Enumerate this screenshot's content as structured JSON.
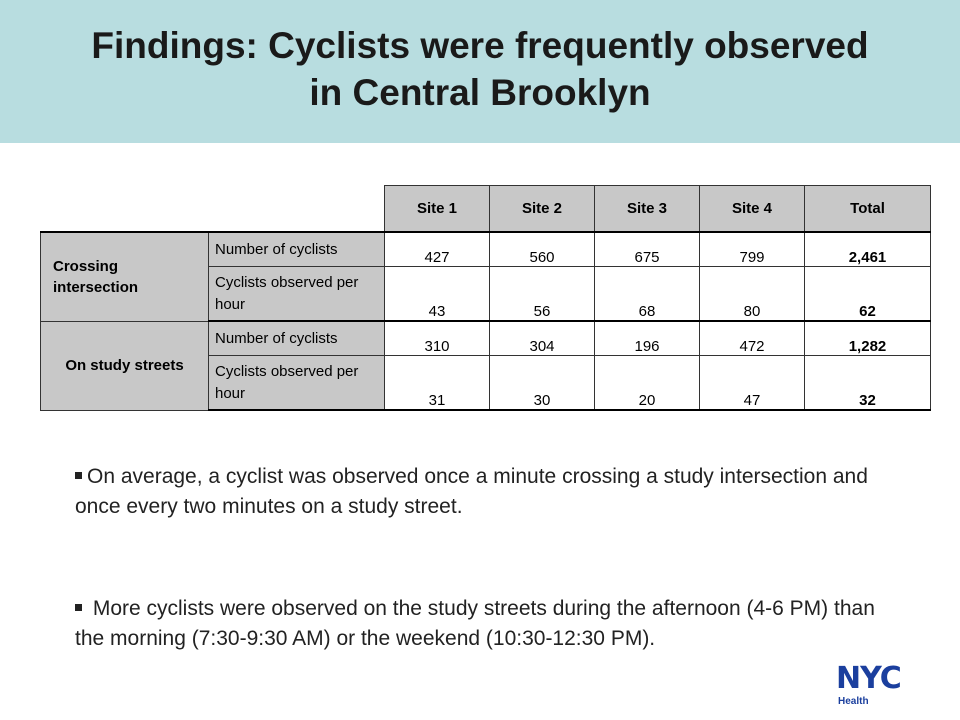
{
  "title": {
    "line1": "Findings: Cyclists were frequently observed",
    "line2": "in Central Brooklyn"
  },
  "table": {
    "headers": [
      "Site 1",
      "Site 2",
      "Site 3",
      "Site 4",
      "Total"
    ],
    "groups": [
      {
        "label": "Crossing intersection",
        "rows": [
          {
            "metric": "Number of cyclists",
            "values": [
              "427",
              "560",
              "675",
              "799"
            ],
            "total": "2,461"
          },
          {
            "metric": "Cyclists observed per hour",
            "values": [
              "43",
              "56",
              "68",
              "80"
            ],
            "total": "62"
          }
        ]
      },
      {
        "label": "On study streets",
        "rows": [
          {
            "metric": "Number of cyclists",
            "values": [
              "310",
              "304",
              "196",
              "472"
            ],
            "total": "1,282"
          },
          {
            "metric": "Cyclists observed per hour",
            "values": [
              "31",
              "30",
              "20",
              "47"
            ],
            "total": "32"
          }
        ]
      }
    ]
  },
  "bullets": [
    "On average, a cyclist was observed once a minute crossing a study intersection and once every two minutes on a study street.",
    " More cyclists were observed on the study streets during the afternoon (4-6 PM) than the morning (7:30-9:30 AM) or the weekend (10:30-12:30 PM)."
  ],
  "logo": {
    "text": "NYC",
    "subtext": "Health",
    "color": "#1b3f9e"
  },
  "colors": {
    "header_bg": "#b8dde0",
    "table_label_bg": "#c8c8c8"
  }
}
